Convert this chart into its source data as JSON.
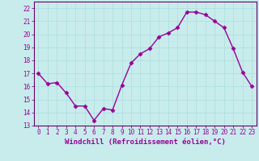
{
  "x": [
    0,
    1,
    2,
    3,
    4,
    5,
    6,
    7,
    8,
    9,
    10,
    11,
    12,
    13,
    14,
    15,
    16,
    17,
    18,
    19,
    20,
    21,
    22,
    23
  ],
  "y": [
    17.0,
    16.2,
    16.3,
    15.5,
    14.5,
    14.5,
    13.4,
    14.3,
    14.2,
    16.1,
    17.8,
    18.5,
    18.9,
    19.8,
    20.1,
    20.5,
    21.7,
    21.7,
    21.5,
    21.0,
    20.5,
    18.9,
    17.1,
    16.0
  ],
  "line_color": "#990099",
  "marker": "D",
  "markersize": 2.5,
  "linewidth": 1.0,
  "bg_color": "#c8ecec",
  "grid_color": "#aadddd",
  "xlabel": "Windchill (Refroidissement éolien,°C)",
  "xlim": [
    -0.5,
    23.5
  ],
  "ylim": [
    13,
    22.5
  ],
  "yticks": [
    13,
    14,
    15,
    16,
    17,
    18,
    19,
    20,
    21,
    22
  ],
  "xticks": [
    0,
    1,
    2,
    3,
    4,
    5,
    6,
    7,
    8,
    9,
    10,
    11,
    12,
    13,
    14,
    15,
    16,
    17,
    18,
    19,
    20,
    21,
    22,
    23
  ],
  "tick_color": "#990099",
  "tick_fontsize": 5.5,
  "xlabel_fontsize": 6.5,
  "spine_color": "#660066"
}
